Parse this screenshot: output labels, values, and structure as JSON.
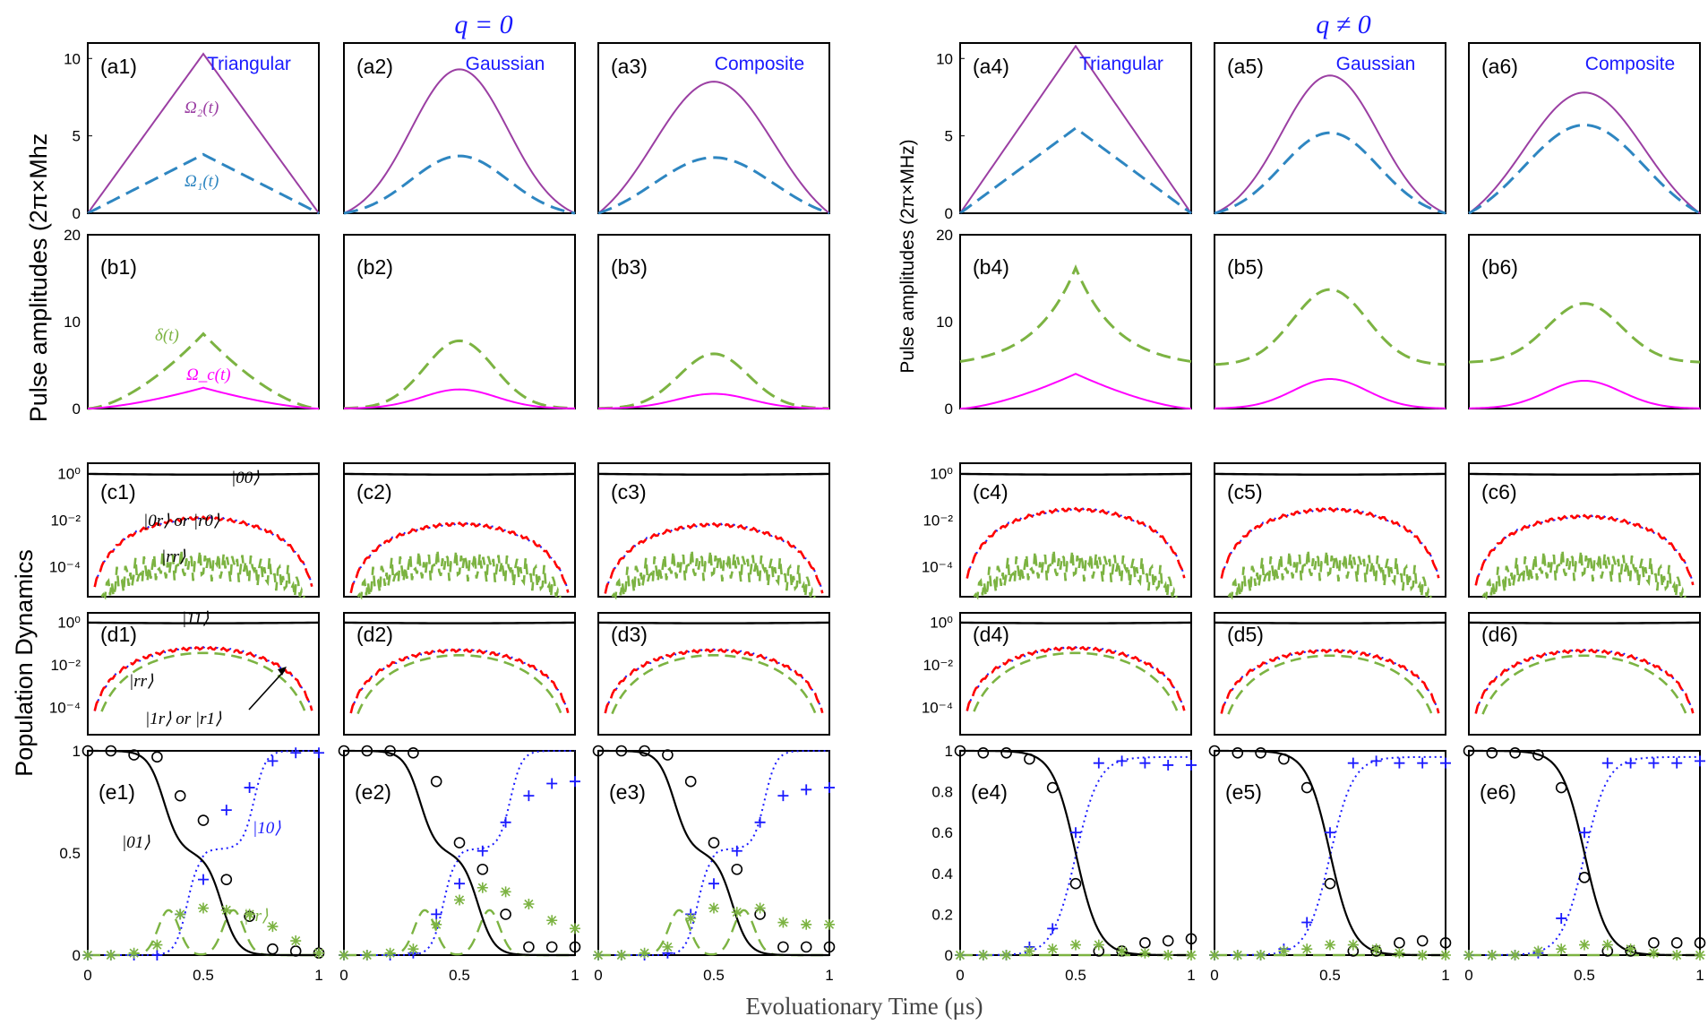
{
  "chart_data": {
    "type": "line",
    "title_left": "q = 0",
    "title_right": "q ≠ 0",
    "xlabel": "Evoluationary Time (μs)",
    "ylabel_pulse_left": "Pulse amplitudes (2π×Mhz",
    "ylabel_pulse_right": "Pulse amplitudes (2π×MHz)",
    "ylabel_population": "Population Dynamics",
    "x_ticks": [
      "0",
      "0.5",
      "1"
    ],
    "x_range": [
      0,
      1
    ],
    "colors": {
      "omega2": "#9b3fa3",
      "omega1": "#2e86c1",
      "delta": "#7cb342",
      "omega_c": "#ff00ff",
      "ground": "#000000",
      "single_rydberg": "#ff0000",
      "single_rydberg_dots": "#1a1aff",
      "double_rydberg": "#7cb342",
      "state10": "#1a1aff",
      "state01": "#000000"
    },
    "columns": [
      {
        "id": "1",
        "shape": "Triangular",
        "q": "zero",
        "omega2_peak": 10.3,
        "omega1_peak": 3.8,
        "delta_peak": 8.6,
        "delta_base": 0,
        "omegac_peak": 2.4,
        "c_single_peak": 0.012,
        "d_single_peak": 0.06,
        "e_plateau": true,
        "e_points_01": [
          1,
          1,
          0.98,
          0.97,
          0.78,
          0.66,
          0.37,
          0.19,
          0.03,
          0.02,
          0.01
        ],
        "e_points_10": [
          0,
          0,
          0,
          0,
          0.2,
          0.37,
          0.71,
          0.82,
          0.95,
          0.99,
          0.99
        ],
        "e_points_rr": [
          0,
          0,
          0.01,
          0.05,
          0.2,
          0.23,
          0.22,
          0.2,
          0.14,
          0.07,
          0.01
        ]
      },
      {
        "id": "2",
        "shape": "Gaussian",
        "q": "zero",
        "omega2_peak": 9.3,
        "omega1_peak": 3.7,
        "delta_peak": 7.8,
        "delta_base": 0,
        "omegac_peak": 2.2,
        "c_single_peak": 0.0066,
        "d_single_peak": 0.047,
        "e_plateau": true,
        "e_points_01": [
          1,
          1,
          1,
          0.99,
          0.85,
          0.55,
          0.42,
          0.2,
          0.04,
          0.04,
          0.04
        ],
        "e_points_10": [
          0,
          0,
          0,
          0.01,
          0.2,
          0.35,
          0.51,
          0.65,
          0.78,
          0.84,
          0.85
        ],
        "e_points_rr": [
          0,
          0,
          0.01,
          0.03,
          0.15,
          0.27,
          0.33,
          0.31,
          0.25,
          0.17,
          0.13
        ]
      },
      {
        "id": "3",
        "shape": "Composite",
        "q": "zero",
        "omega2_peak": 8.5,
        "omega1_peak": 3.6,
        "delta_peak": 6.3,
        "delta_base": 0,
        "omegac_peak": 1.7,
        "c_single_peak": 0.0062,
        "d_single_peak": 0.047,
        "e_plateau": true,
        "e_points_01": [
          1,
          1,
          1,
          0.98,
          0.85,
          0.55,
          0.42,
          0.2,
          0.04,
          0.04,
          0.04
        ],
        "e_points_10": [
          0,
          0,
          0,
          0.01,
          0.2,
          0.35,
          0.51,
          0.65,
          0.78,
          0.81,
          0.82
        ],
        "e_points_rr": [
          0,
          0,
          0.01,
          0.04,
          0.18,
          0.23,
          0.21,
          0.23,
          0.16,
          0.15,
          0.15
        ]
      },
      {
        "id": "4",
        "shape": "Triangular",
        "q": "nonzero",
        "omega2_peak": 10.8,
        "omega1_peak": 5.5,
        "delta_peak": 16.2,
        "delta_base": 4.7,
        "omegac_peak": 4.0,
        "c_single_peak": 0.028,
        "d_single_peak": 0.06,
        "e_plateau": false,
        "e_points_01": [
          1,
          0.99,
          0.99,
          0.96,
          0.82,
          0.35,
          0.02,
          0.02,
          0.06,
          0.07,
          0.08
        ],
        "e_points_10": [
          0,
          0,
          0,
          0.04,
          0.13,
          0.6,
          0.94,
          0.95,
          0.94,
          0.93,
          0.93
        ],
        "e_points_rr": [
          0,
          0,
          0,
          0.02,
          0.03,
          0.05,
          0.05,
          0.02,
          0.01,
          0,
          0
        ]
      },
      {
        "id": "5",
        "shape": "Gaussian",
        "q": "nonzero",
        "omega2_peak": 8.9,
        "omega1_peak": 5.2,
        "delta_peak": 13.7,
        "delta_base": 5.0,
        "omegac_peak": 3.4,
        "c_single_peak": 0.028,
        "d_single_peak": 0.045,
        "e_plateau": false,
        "e_points_01": [
          1,
          0.99,
          0.99,
          0.96,
          0.82,
          0.35,
          0.02,
          0.02,
          0.06,
          0.07,
          0.06
        ],
        "e_points_10": [
          0,
          0,
          0,
          0.03,
          0.16,
          0.6,
          0.94,
          0.95,
          0.94,
          0.94,
          0.94
        ],
        "e_points_rr": [
          0,
          0,
          0,
          0.02,
          0.03,
          0.05,
          0.05,
          0.03,
          0.01,
          0,
          0
        ]
      },
      {
        "id": "6",
        "shape": "Composite",
        "q": "nonzero",
        "omega2_peak": 7.8,
        "omega1_peak": 5.7,
        "delta_peak": 12.1,
        "delta_base": 5.3,
        "omegac_peak": 3.2,
        "c_single_peak": 0.014,
        "d_single_peak": 0.045,
        "e_plateau": false,
        "e_points_01": [
          1,
          0.99,
          0.99,
          0.98,
          0.82,
          0.38,
          0.02,
          0.02,
          0.06,
          0.06,
          0.06
        ],
        "e_points_10": [
          0,
          0,
          0,
          0.01,
          0.18,
          0.6,
          0.94,
          0.94,
          0.94,
          0.94,
          0.95
        ],
        "e_points_rr": [
          0,
          0,
          0,
          0.02,
          0.03,
          0.05,
          0.05,
          0.03,
          0.01,
          0,
          0
        ]
      }
    ],
    "row_a": {
      "ylim": [
        0,
        11
      ],
      "ticks": [
        "0",
        "5",
        "10"
      ]
    },
    "row_b": {
      "ylim": [
        0,
        20
      ],
      "ticks": [
        "0",
        "10",
        "20"
      ],
      "ticks_right": [
        "0",
        "10",
        "20"
      ]
    },
    "row_cd": {
      "ticks": [
        "10⁰",
        "10⁻²",
        "10⁻⁴"
      ]
    },
    "row_e": {
      "ticks_left": [
        "0",
        "0.5",
        "1"
      ],
      "ticks_right": [
        "0",
        "0.2",
        "0.4",
        "0.6",
        "0.8",
        "1"
      ]
    },
    "annotations": {
      "omega2": "Ω₂(t)",
      "omega1": "Ω₁(t)",
      "delta": "δ(t)",
      "omega_c": "Ω_c(t)",
      "ket00": "|00⟩",
      "ket0r": "|0r⟩ or |r0⟩",
      "ketrr_c": "|rr⟩",
      "ket11": "|11⟩",
      "ketrr_d": "|rr⟩",
      "ket1r": "|1r⟩ or |r1⟩",
      "ket10": "|10⟩",
      "ket01": "|01⟩",
      "ketrr_e": "|rr⟩"
    }
  }
}
